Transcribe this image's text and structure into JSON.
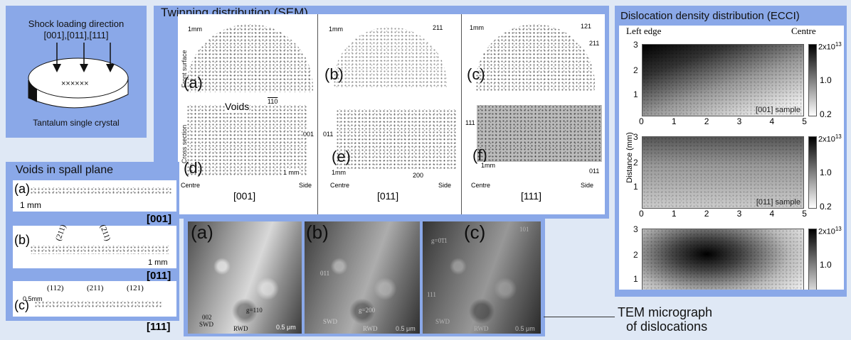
{
  "shock": {
    "title": "Shock loading direction",
    "directions": "[001],[011],[111]",
    "specimen_marks": "××××××",
    "caption": "Tantalum single crystal"
  },
  "twinning": {
    "title": "Twinning distribution (SEM)",
    "row_labels": [
      "Front surface",
      "Cross section"
    ],
    "columns": [
      {
        "front_label": "(a)",
        "cross_label": "(d)",
        "orientation": "[001]",
        "scale_front": "1mm",
        "scale_cross": "1 mm",
        "dir_top": "110",
        "dir_side": "001",
        "front_vec": [
          "110",
          "110"
        ],
        "annotation": "Voids",
        "left_mark": "Centre",
        "right_mark": "Side"
      },
      {
        "front_label": "(b)",
        "cross_label": "(e)",
        "orientation": "[011]",
        "scale_front": "1mm",
        "scale_cross": "1mm",
        "dir_top": "211",
        "dir_side": "011",
        "dir_bottom": "200",
        "left_mark": "Centre",
        "right_mark": "Side"
      },
      {
        "front_label": "(c)",
        "cross_label": "(f)",
        "orientation": "[111]",
        "scale_front": "1mm",
        "scale_cross": "1mm",
        "dir_top": "121",
        "dir_top2": "211",
        "dir_side": "111",
        "dir_bottom": "011",
        "left_mark": "Centre",
        "right_mark": "Side"
      }
    ]
  },
  "voids": {
    "title": "Voids in spall plane",
    "rows": [
      {
        "label": "(a)",
        "scale": "1 mm",
        "orientation": "[001]"
      },
      {
        "label": "(b)",
        "scale": "1 mm",
        "orientation": "[011]",
        "planes": [
          "(211)",
          "(211)"
        ]
      },
      {
        "label": "(c)",
        "scale": "0.5mm",
        "orientation": "[111]",
        "planes": [
          "(112)",
          "(211)",
          "(121)"
        ]
      }
    ]
  },
  "tem": {
    "caption_line1": "TEM micrograph",
    "caption_line2": "of dislocations",
    "images": [
      {
        "label": "(a)",
        "g": "g=110",
        "swd_dir": "002",
        "swd": "SWD",
        "rwd": "RWD",
        "scale": "0.5 μm"
      },
      {
        "label": "(b)",
        "g": "g=200",
        "swd_dir": "011",
        "swd": "SWD",
        "rwd": "RWD",
        "scale": "0.5 μm"
      },
      {
        "label": "(c)",
        "g": "g=0̄1̄1",
        "g_dir": "101",
        "swd_dir": "111",
        "swd": "SWD",
        "rwd": "RWD",
        "scale": "0.5 μm"
      }
    ]
  },
  "ecci": {
    "title": "Dislocation density distribution (ECCI)",
    "left_label": "Left edge",
    "right_label": "Centre",
    "ylabel": "Distance (mm)",
    "xticks": [
      "0",
      "1",
      "2",
      "3",
      "4",
      "5"
    ],
    "yticks": [
      "3",
      "2",
      "1"
    ],
    "cbar_top": "2x10",
    "cbar_exp": "13",
    "maps": [
      {
        "sample": "[001] sample",
        "cbar_mid": "1.0",
        "cbar_low": "0.2"
      },
      {
        "sample": "[011] sample",
        "cbar_mid": "1.0",
        "cbar_low": "0.2"
      },
      {
        "sample": "",
        "cbar_mid": "1.0",
        "cbar_low": ""
      }
    ]
  },
  "colors": {
    "panel": "#8aa8e8",
    "background": "#dfe8f5"
  }
}
